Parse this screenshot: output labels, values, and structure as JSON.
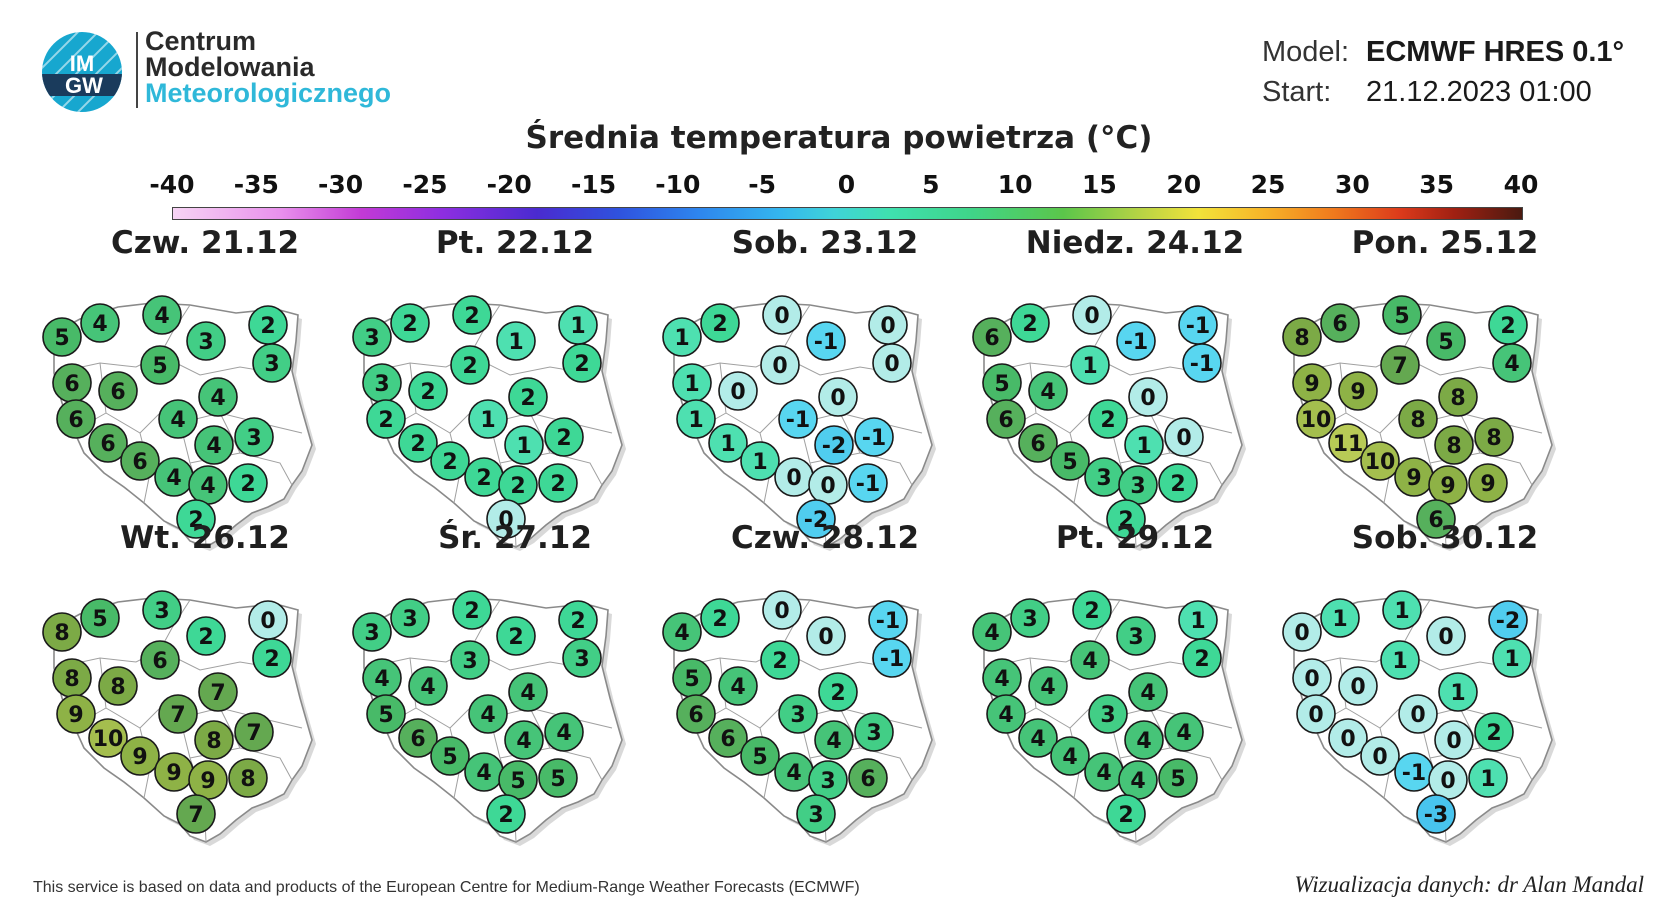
{
  "header": {
    "logo_line1": "Centrum",
    "logo_line2": "Modelowania",
    "logo_line3": "Meteorologicznego",
    "logo_badge": "IMGW",
    "model_label": "Model:",
    "model_value": "ECMWF HRES 0.1°",
    "start_label": "Start:",
    "start_value": "21.12.2023 01:00"
  },
  "title": "Średnia temperatura powietrza (°C)",
  "scale": {
    "ticks": [
      "-40",
      "-35",
      "-30",
      "-25",
      "-20",
      "-15",
      "-10",
      "-5",
      "0",
      "5",
      "10",
      "15",
      "20",
      "25",
      "30",
      "35",
      "40"
    ]
  },
  "days": [
    {
      "label": "Czw. 21.12",
      "values": [
        5,
        4,
        4,
        3,
        2,
        3,
        6,
        6,
        5,
        4,
        4,
        6,
        6,
        4,
        3,
        6,
        4,
        4,
        2,
        2
      ]
    },
    {
      "label": "Pt. 22.12",
      "values": [
        3,
        2,
        2,
        1,
        1,
        2,
        3,
        2,
        2,
        2,
        1,
        2,
        2,
        1,
        2,
        2,
        2,
        2,
        2,
        0
      ]
    },
    {
      "label": "Sob. 23.12",
      "values": [
        1,
        2,
        0,
        -1,
        0,
        0,
        1,
        0,
        0,
        0,
        -1,
        1,
        1,
        -2,
        -1,
        1,
        0,
        0,
        -1,
        -2
      ]
    },
    {
      "label": "Niedz. 24.12",
      "values": [
        6,
        2,
        0,
        -1,
        -1,
        -1,
        5,
        4,
        1,
        0,
        2,
        6,
        6,
        1,
        0,
        5,
        3,
        3,
        2,
        2
      ]
    },
    {
      "label": "Pon. 25.12",
      "values": [
        8,
        6,
        5,
        5,
        2,
        4,
        9,
        9,
        7,
        8,
        8,
        10,
        11,
        8,
        8,
        10,
        9,
        9,
        9,
        6
      ]
    },
    {
      "label": "Wt. 26.12",
      "values": [
        8,
        5,
        3,
        2,
        0,
        2,
        8,
        8,
        6,
        7,
        7,
        9,
        10,
        8,
        7,
        9,
        9,
        9,
        8,
        7
      ]
    },
    {
      "label": "Śr. 27.12",
      "values": [
        3,
        3,
        2,
        2,
        2,
        3,
        4,
        4,
        3,
        4,
        4,
        5,
        6,
        4,
        4,
        5,
        4,
        5,
        5,
        2
      ]
    },
    {
      "label": "Czw. 28.12",
      "values": [
        4,
        2,
        0,
        0,
        -1,
        -1,
        5,
        4,
        2,
        2,
        3,
        6,
        6,
        4,
        3,
        5,
        4,
        3,
        6,
        3
      ]
    },
    {
      "label": "Pt. 29.12",
      "values": [
        4,
        3,
        2,
        3,
        1,
        2,
        4,
        4,
        4,
        4,
        3,
        4,
        4,
        4,
        4,
        4,
        4,
        4,
        5,
        2
      ]
    },
    {
      "label": "Sob. 30.12",
      "values": [
        0,
        1,
        1,
        0,
        -2,
        1,
        0,
        0,
        1,
        1,
        0,
        0,
        0,
        0,
        2,
        0,
        -1,
        0,
        1,
        -3
      ]
    }
  ],
  "footer": {
    "left": "This service is based on data and products of the European Centre for Medium-Range Weather Forecasts (ECMWF)",
    "right": "Wizualizacja danych: dr Alan Mandal"
  }
}
